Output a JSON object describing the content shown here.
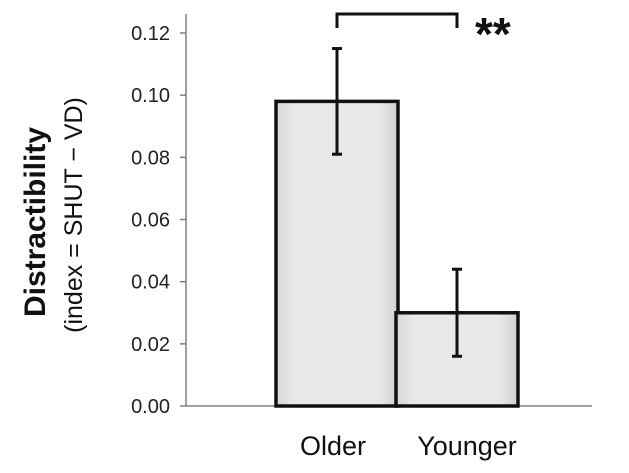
{
  "chart_data": {
    "type": "bar",
    "categories": [
      "Older",
      "Younger"
    ],
    "values": [
      0.098,
      0.03
    ],
    "errors": [
      0.017,
      0.014
    ],
    "ylabel": "Distractibility",
    "ylabel_sub": "(index = SHUT − VD)",
    "ylim": [
      0,
      0.12
    ],
    "yticks": [
      "0.00",
      "0.02",
      "0.04",
      "0.06",
      "0.08",
      "0.10",
      "0.12"
    ],
    "ytick_values": [
      0,
      0.02,
      0.04,
      0.06,
      0.08,
      0.1,
      0.12
    ],
    "grid": false,
    "legend": "none",
    "annotation": "**",
    "colors": {
      "bar_fill": "#e6e6e6",
      "bar_edge": "#111111",
      "axis": "#808080"
    }
  }
}
